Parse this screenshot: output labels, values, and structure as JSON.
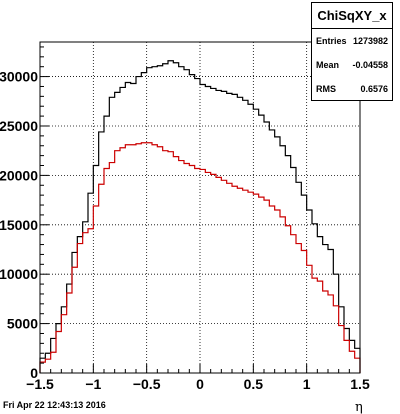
{
  "chart_data": {
    "type": "histogram",
    "xlabel": "η",
    "xlim": [
      -1.5,
      1.5
    ],
    "ylim": [
      0,
      33500
    ],
    "x_ticks": [
      "−1.5",
      "−1",
      "−0.5",
      "0",
      "0.5",
      "1",
      "1.5"
    ],
    "x_tick_values": [
      -1.5,
      -1,
      -0.5,
      0,
      0.5,
      1,
      1.5
    ],
    "y_ticks": [
      "0",
      "5000",
      "10000",
      "15000",
      "20000",
      "25000",
      "30000"
    ],
    "y_tick_values": [
      0,
      5000,
      10000,
      15000,
      20000,
      25000,
      30000
    ],
    "y_tick_labels_partially_clipped": true,
    "grid": true,
    "bin_width": 0.05,
    "series": [
      {
        "color": "#000000",
        "values": [
          1500,
          2000,
          3500,
          5000,
          6700,
          9000,
          12200,
          13800,
          15300,
          18200,
          21000,
          24400,
          26000,
          27900,
          28400,
          28900,
          29400,
          29300,
          30000,
          30400,
          30900,
          31000,
          31100,
          31300,
          31600,
          31400,
          31000,
          30700,
          30200,
          29800,
          29200,
          29000,
          28800,
          28600,
          28500,
          28300,
          28200,
          27900,
          27600,
          27200,
          26700,
          26100,
          25400,
          24600,
          23900,
          23000,
          22000,
          20800,
          19300,
          18000,
          16500,
          15100,
          13800,
          13000,
          12500,
          10000,
          6700,
          4500,
          3300,
          2500
        ]
      },
      {
        "color": "#cc0000",
        "values": [
          1100,
          1400,
          2100,
          4200,
          5900,
          8100,
          10700,
          13100,
          14200,
          14600,
          16900,
          19100,
          20700,
          21300,
          22500,
          22800,
          23100,
          23100,
          23200,
          23300,
          23300,
          23100,
          22900,
          22500,
          22400,
          21900,
          21500,
          21200,
          21000,
          20700,
          20600,
          20300,
          20100,
          19800,
          19500,
          19200,
          18900,
          18700,
          18500,
          18300,
          18100,
          17800,
          17500,
          16900,
          16500,
          15800,
          14900,
          14000,
          13100,
          12400,
          10900,
          9600,
          9300,
          8300,
          7900,
          6800,
          4800,
          3300,
          2200,
          1500
        ]
      }
    ]
  },
  "stats": {
    "title": "ChiSqXY_x",
    "rows": [
      {
        "label": "Entries",
        "value": "1273982"
      },
      {
        "label": "Mean",
        "value": "-0.04558"
      },
      {
        "label": "RMS",
        "value": "0.6576"
      }
    ]
  },
  "footer": {
    "date": "Fri Apr 22 12:43:13 2016"
  }
}
